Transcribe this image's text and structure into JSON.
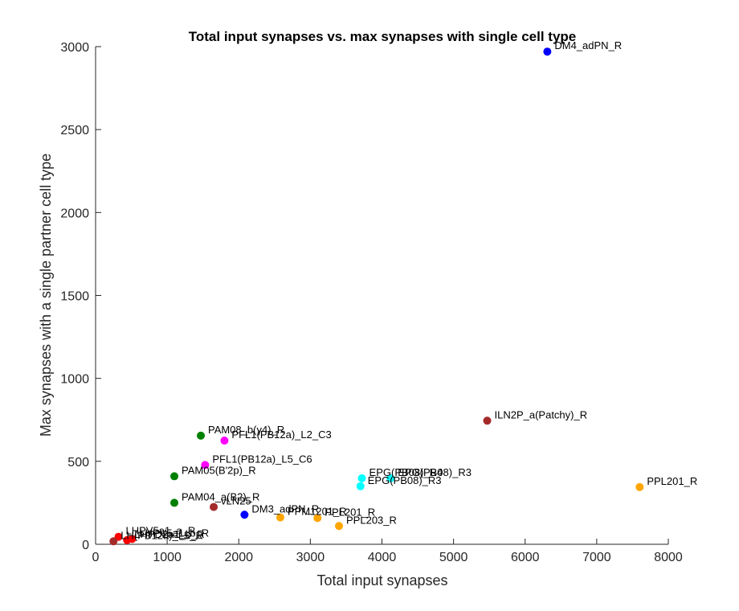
{
  "chart_data": {
    "type": "scatter",
    "title": "Total input synapses vs. max synapses with single cell type",
    "xlabel": "Total input synapses",
    "ylabel": "Max synapses with a single partner cell type",
    "xlim": [
      0,
      8000
    ],
    "ylim": [
      0,
      3000
    ],
    "x_ticks": [
      0,
      1000,
      2000,
      3000,
      4000,
      5000,
      6000,
      7000,
      8000
    ],
    "y_ticks": [
      0,
      500,
      1000,
      1500,
      2000,
      2500,
      3000
    ],
    "grid": false,
    "legend": "none",
    "points": [
      {
        "label": "DM4_adPN_R",
        "x": 6310,
        "y": 2970,
        "color": "#0000ff"
      },
      {
        "label": "ILN2P_a(Patchy)_R",
        "x": 5470,
        "y": 745,
        "color": "#a52a2a"
      },
      {
        "label": "PPL201_R",
        "x": 7600,
        "y": 345,
        "color": "#ffa500"
      },
      {
        "label": "PAM08_b(γ4)_R",
        "x": 1470,
        "y": 655,
        "color": "#008000"
      },
      {
        "label": "PFL1(PB12a)_L2_C3",
        "x": 1800,
        "y": 625,
        "color": "#ff00ff"
      },
      {
        "label": "PFL1(PB12a)_L5_C6",
        "x": 1530,
        "y": 478,
        "color": "#ff00ff"
      },
      {
        "label": "PAM05(B'2p)_R",
        "x": 1100,
        "y": 410,
        "color": "#008000"
      },
      {
        "label": "PAM04_a(B2)_R",
        "x": 1100,
        "y": 250,
        "color": "#008000"
      },
      {
        "label": "vLN25",
        "x": 1650,
        "y": 225,
        "color": "#a52a2a"
      },
      {
        "label": "DM3_adPN_R",
        "x": 2080,
        "y": 178,
        "color": "#0000ff"
      },
      {
        "label": "EPG(PB08)_R4",
        "x": 3720,
        "y": 398,
        "color": "#00ffff"
      },
      {
        "label": "EPG(PB08)_R3",
        "x": 4120,
        "y": 398,
        "color": "#00ffff"
      },
      {
        "label": "EPG(PB08)_R3",
        "x": 3700,
        "y": 350,
        "color": "#00ffff"
      },
      {
        "label": "PPM1201_R",
        "x": 2580,
        "y": 162,
        "color": "#ffa500"
      },
      {
        "label": "PPL201_R",
        "x": 3100,
        "y": 158,
        "color": "#ffa500"
      },
      {
        "label": "PPL203_R",
        "x": 3400,
        "y": 110,
        "color": "#ffa500"
      },
      {
        "label": "LHPV5a1_a_R",
        "x": 320,
        "y": 45,
        "color": "#ff0000"
      },
      {
        "label": "LHPD2a1_b_R",
        "x": 440,
        "y": 25,
        "color": "#ff0000"
      },
      {
        "label": "LHPV5a1_b_R",
        "x": 510,
        "y": 32,
        "color": "#ff0000"
      },
      {
        "label": "LH(PB12a)_L5_R",
        "x": 250,
        "y": 18,
        "color": "#a52a2a"
      }
    ]
  }
}
